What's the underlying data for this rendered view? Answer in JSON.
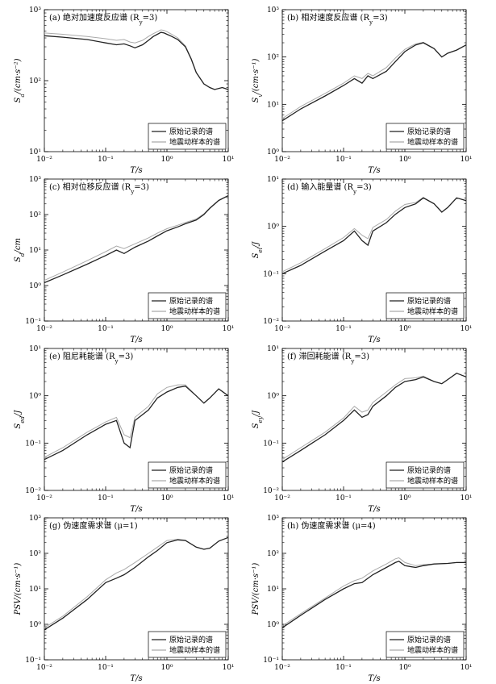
{
  "chart_data": [
    {
      "id": "a",
      "type": "line",
      "title": "(a) 绝对加速度反应谱 (R_y=3)",
      "xlabel": "T/s",
      "ylabel": "S_a/(cm·s⁻²)",
      "xscale": "log",
      "yscale": "log",
      "xlim": [
        0.01,
        10
      ],
      "ylim": [
        10,
        1000
      ],
      "xticks": [
        "10⁻²",
        "10⁻¹",
        "10⁰",
        "10¹"
      ],
      "yticks": [
        "10¹",
        "10²",
        "10³"
      ],
      "legend": {
        "position": "bottom-right",
        "entries": [
          "原始记录的谱",
          "地震动样本的谱"
        ]
      },
      "series": [
        {
          "name": "原始记录的谱",
          "color": "#222222",
          "x": [
            0.01,
            0.02,
            0.05,
            0.1,
            0.15,
            0.2,
            0.25,
            0.3,
            0.4,
            0.5,
            0.6,
            0.7,
            0.8,
            0.9,
            1.0,
            1.2,
            1.5,
            2.0,
            2.5,
            3.0,
            4.0,
            5.0,
            6.0,
            8.0,
            10.0
          ],
          "y": [
            430,
            410,
            380,
            340,
            320,
            330,
            310,
            290,
            320,
            370,
            420,
            450,
            480,
            470,
            450,
            420,
            380,
            300,
            200,
            130,
            90,
            80,
            75,
            80,
            75
          ]
        },
        {
          "name": "地震动样本的谱",
          "color": "#aaaaaa",
          "x": [
            0.01,
            0.02,
            0.05,
            0.1,
            0.15,
            0.2,
            0.25,
            0.3,
            0.4,
            0.5,
            0.6,
            0.7,
            0.8,
            0.9,
            1.0,
            1.2,
            1.5,
            2.0,
            2.5,
            3.0,
            4.0,
            5.0,
            6.0,
            8.0,
            10.0
          ],
          "y": [
            470,
            450,
            420,
            390,
            370,
            380,
            350,
            340,
            370,
            420,
            460,
            490,
            520,
            510,
            490,
            450,
            400,
            310,
            205,
            132,
            90,
            80,
            75,
            80,
            75
          ]
        }
      ]
    },
    {
      "id": "b",
      "type": "line",
      "title": "(b) 相对速度反应谱 (R_y=3)",
      "xlabel": "T/s",
      "ylabel": "S_v/(cm·s⁻¹)",
      "xscale": "log",
      "yscale": "log",
      "xlim": [
        0.01,
        10
      ],
      "ylim": [
        1,
        1000
      ],
      "xticks": [
        "10⁻²",
        "10⁻¹",
        "10⁰",
        "10¹"
      ],
      "yticks": [
        "10⁰",
        "10¹",
        "10²",
        "10³"
      ],
      "legend": {
        "position": "bottom-right",
        "entries": [
          "原始记录的谱",
          "地震动样本的谱"
        ]
      },
      "series": [
        {
          "name": "原始记录的谱",
          "color": "#222222",
          "x": [
            0.01,
            0.02,
            0.05,
            0.1,
            0.15,
            0.2,
            0.25,
            0.3,
            0.5,
            0.7,
            1.0,
            1.5,
            2.0,
            3.0,
            4.0,
            5.0,
            7.0,
            10.0
          ],
          "y": [
            4.5,
            8,
            15,
            25,
            35,
            28,
            40,
            35,
            50,
            80,
            130,
            180,
            200,
            150,
            100,
            120,
            140,
            180
          ]
        },
        {
          "name": "地震动样本的谱",
          "color": "#aaaaaa",
          "x": [
            0.01,
            0.02,
            0.05,
            0.1,
            0.15,
            0.2,
            0.25,
            0.3,
            0.5,
            0.7,
            1.0,
            1.5,
            2.0,
            3.0,
            4.0,
            5.0,
            7.0,
            10.0
          ],
          "y": [
            5,
            9,
            17,
            28,
            40,
            35,
            45,
            40,
            60,
            95,
            145,
            190,
            205,
            150,
            100,
            120,
            140,
            180
          ]
        }
      ]
    },
    {
      "id": "c",
      "type": "line",
      "title": "(c) 相对位移反应谱 (R_y=3)",
      "xlabel": "T/s",
      "ylabel": "S_d/cm",
      "xscale": "log",
      "yscale": "log",
      "xlim": [
        0.01,
        10
      ],
      "ylim": [
        0.1,
        1000
      ],
      "xticks": [
        "10⁻²",
        "10⁻¹",
        "10⁰",
        "10¹"
      ],
      "yticks": [
        "10⁻¹",
        "10⁰",
        "10¹",
        "10²",
        "10³"
      ],
      "legend": {
        "position": "bottom-right",
        "entries": [
          "原始记录的谱",
          "地震动样本的谱"
        ]
      },
      "series": [
        {
          "name": "原始记录的谱",
          "color": "#222222",
          "x": [
            0.01,
            0.02,
            0.05,
            0.1,
            0.15,
            0.2,
            0.3,
            0.5,
            0.7,
            1.0,
            1.5,
            2.0,
            3.0,
            4.0,
            5.0,
            7.0,
            10.0
          ],
          "y": [
            1.2,
            2,
            4,
            7,
            10,
            8,
            12,
            18,
            25,
            35,
            45,
            55,
            70,
            100,
            150,
            250,
            340
          ]
        },
        {
          "name": "地震动样本的谱",
          "color": "#aaaaaa",
          "x": [
            0.01,
            0.02,
            0.05,
            0.1,
            0.15,
            0.2,
            0.3,
            0.5,
            0.7,
            1.0,
            1.5,
            2.0,
            3.0,
            4.0,
            5.0,
            7.0,
            10.0
          ],
          "y": [
            1.4,
            2.4,
            5,
            9,
            13,
            11,
            15,
            22,
            30,
            40,
            50,
            60,
            75,
            105,
            155,
            255,
            345
          ]
        }
      ]
    },
    {
      "id": "d",
      "type": "line",
      "title": "(d) 输入能量谱 (R_y=3)",
      "xlabel": "T/s",
      "ylabel": "S_ei/J",
      "xscale": "log",
      "yscale": "log",
      "xlim": [
        0.01,
        10
      ],
      "ylim": [
        0.01,
        10
      ],
      "xticks": [
        "10⁻²",
        "10⁻¹",
        "10⁰",
        "10¹"
      ],
      "yticks": [
        "10⁻²",
        "10⁻¹",
        "10⁰",
        "10¹"
      ],
      "legend": {
        "position": "bottom-right",
        "entries": [
          "原始记录的谱",
          "地震动样本的谱"
        ]
      },
      "series": [
        {
          "name": "原始记录的谱",
          "color": "#222222",
          "x": [
            0.01,
            0.02,
            0.05,
            0.1,
            0.15,
            0.2,
            0.25,
            0.3,
            0.5,
            0.7,
            1.0,
            1.5,
            2.0,
            3.0,
            4.0,
            5.0,
            7.0,
            10.0
          ],
          "y": [
            0.1,
            0.15,
            0.3,
            0.5,
            0.8,
            0.5,
            0.4,
            0.8,
            1.2,
            1.8,
            2.5,
            3.0,
            4.0,
            3.0,
            2.0,
            2.5,
            4.0,
            3.5
          ]
        },
        {
          "name": "地震动样本的谱",
          "color": "#aaaaaa",
          "x": [
            0.01,
            0.02,
            0.05,
            0.1,
            0.15,
            0.2,
            0.25,
            0.3,
            0.5,
            0.7,
            1.0,
            1.5,
            2.0,
            3.0,
            4.0,
            5.0,
            7.0,
            10.0
          ],
          "y": [
            0.11,
            0.17,
            0.34,
            0.58,
            0.9,
            0.65,
            0.55,
            0.95,
            1.4,
            2.1,
            2.9,
            3.2,
            4.1,
            3.0,
            2.0,
            2.5,
            4.0,
            3.5
          ]
        }
      ]
    },
    {
      "id": "e",
      "type": "line",
      "title": "(e) 阻尼耗能谱 (R_y=3)",
      "xlabel": "T/s",
      "ylabel": "S_ed/J",
      "xscale": "log",
      "yscale": "log",
      "xlim": [
        0.01,
        10
      ],
      "ylim": [
        0.01,
        10
      ],
      "xticks": [
        "10⁻²",
        "10⁻¹",
        "10⁰",
        "10¹"
      ],
      "yticks": [
        "10⁻²",
        "10⁻¹",
        "10⁰",
        "10¹"
      ],
      "legend": {
        "position": "bottom-right",
        "entries": [
          "原始记录的谱",
          "地震动样本的谱"
        ]
      },
      "series": [
        {
          "name": "原始记录的谱",
          "color": "#222222",
          "x": [
            0.01,
            0.02,
            0.05,
            0.1,
            0.15,
            0.2,
            0.25,
            0.3,
            0.5,
            0.7,
            1.0,
            1.5,
            2.0,
            3.0,
            4.0,
            5.0,
            7.0,
            10.0
          ],
          "y": [
            0.045,
            0.07,
            0.15,
            0.25,
            0.3,
            0.1,
            0.08,
            0.3,
            0.5,
            0.9,
            1.2,
            1.5,
            1.6,
            1.0,
            0.7,
            0.9,
            1.4,
            1.0
          ]
        },
        {
          "name": "地震动样本的谱",
          "color": "#aaaaaa",
          "x": [
            0.01,
            0.02,
            0.05,
            0.1,
            0.15,
            0.2,
            0.25,
            0.3,
            0.5,
            0.7,
            1.0,
            1.5,
            2.0,
            3.0,
            4.0,
            5.0,
            7.0,
            10.0
          ],
          "y": [
            0.05,
            0.08,
            0.17,
            0.28,
            0.35,
            0.15,
            0.13,
            0.35,
            0.6,
            1.1,
            1.5,
            1.7,
            1.7,
            1.0,
            0.7,
            0.9,
            1.4,
            1.0
          ]
        }
      ]
    },
    {
      "id": "f",
      "type": "line",
      "title": "(f) 滞回耗能谱 (R_y=3)",
      "xlabel": "T/s",
      "ylabel": "S_ey/J",
      "xscale": "log",
      "yscale": "log",
      "xlim": [
        0.01,
        10
      ],
      "ylim": [
        0.01,
        10
      ],
      "xticks": [
        "10⁻²",
        "10⁻¹",
        "10⁰",
        "10¹"
      ],
      "yticks": [
        "10⁻²",
        "10⁻¹",
        "10⁰",
        "10¹"
      ],
      "legend": {
        "position": "bottom-right",
        "entries": [
          "原始记录的谱",
          "地震动样本的谱"
        ]
      },
      "series": [
        {
          "name": "原始记录的谱",
          "color": "#222222",
          "x": [
            0.01,
            0.02,
            0.05,
            0.1,
            0.15,
            0.2,
            0.25,
            0.3,
            0.5,
            0.7,
            1.0,
            1.5,
            2.0,
            3.0,
            4.0,
            5.0,
            7.0,
            10.0
          ],
          "y": [
            0.04,
            0.07,
            0.15,
            0.3,
            0.5,
            0.35,
            0.4,
            0.6,
            1.0,
            1.5,
            2.0,
            2.2,
            2.5,
            2.0,
            1.8,
            2.2,
            3.0,
            2.5
          ]
        },
        {
          "name": "地震动样本的谱",
          "color": "#aaaaaa",
          "x": [
            0.01,
            0.02,
            0.05,
            0.1,
            0.15,
            0.2,
            0.25,
            0.3,
            0.5,
            0.7,
            1.0,
            1.5,
            2.0,
            3.0,
            4.0,
            5.0,
            7.0,
            10.0
          ],
          "y": [
            0.045,
            0.08,
            0.17,
            0.34,
            0.6,
            0.45,
            0.5,
            0.72,
            1.2,
            1.7,
            2.3,
            2.4,
            2.6,
            2.0,
            1.8,
            2.2,
            3.0,
            2.5
          ]
        }
      ]
    },
    {
      "id": "g",
      "type": "line",
      "title": "(g) 伪速度需求谱 (μ=1)",
      "xlabel": "T/s",
      "ylabel": "PSV/(cm·s⁻¹)",
      "xscale": "log",
      "yscale": "log",
      "xlim": [
        0.01,
        10
      ],
      "ylim": [
        0.1,
        1000
      ],
      "xticks": [
        "10⁻²",
        "10⁻¹",
        "10⁰",
        "10¹"
      ],
      "yticks": [
        "10⁻¹",
        "10⁰",
        "10¹",
        "10²",
        "10³"
      ],
      "legend": {
        "position": "bottom-right",
        "entries": [
          "原始记录的谱",
          "地震动样本的谱"
        ]
      },
      "series": [
        {
          "name": "原始记录的谱",
          "color": "#222222",
          "x": [
            0.01,
            0.02,
            0.05,
            0.1,
            0.15,
            0.2,
            0.3,
            0.5,
            0.7,
            1.0,
            1.5,
            2.0,
            3.0,
            4.0,
            5.0,
            7.0,
            10.0
          ],
          "y": [
            0.7,
            1.5,
            5,
            15,
            20,
            25,
            40,
            80,
            120,
            200,
            240,
            230,
            150,
            130,
            140,
            220,
            280
          ]
        },
        {
          "name": "地震动样本的谱",
          "color": "#aaaaaa",
          "x": [
            0.01,
            0.02,
            0.05,
            0.1,
            0.15,
            0.2,
            0.3,
            0.5,
            0.7,
            1.0,
            1.5,
            2.0,
            3.0,
            4.0,
            5.0,
            7.0,
            10.0
          ],
          "y": [
            0.8,
            1.7,
            6,
            18,
            28,
            35,
            55,
            100,
            150,
            230,
            250,
            235,
            150,
            130,
            140,
            220,
            280
          ]
        }
      ]
    },
    {
      "id": "h",
      "type": "line",
      "title": "(h) 伪速度需求谱 (μ=4)",
      "xlabel": "T/s",
      "ylabel": "PSV/(cm·s⁻¹)",
      "xscale": "log",
      "yscale": "log",
      "xlim": [
        0.01,
        10
      ],
      "ylim": [
        0.1,
        1000
      ],
      "xticks": [
        "10⁻²",
        "10⁻¹",
        "10⁰",
        "10¹"
      ],
      "yticks": [
        "10⁻¹",
        "10⁰",
        "10¹",
        "10²",
        "10³"
      ],
      "legend": {
        "position": "bottom-right",
        "entries": [
          "原始记录的谱",
          "地震动样本的谱"
        ]
      },
      "series": [
        {
          "name": "原始记录的谱",
          "color": "#222222",
          "x": [
            0.01,
            0.02,
            0.05,
            0.1,
            0.15,
            0.2,
            0.3,
            0.5,
            0.7,
            0.8,
            1.0,
            1.5,
            2.0,
            3.0,
            5.0,
            7.0,
            10.0
          ],
          "y": [
            0.8,
            1.8,
            5,
            10,
            14,
            15,
            25,
            40,
            55,
            60,
            45,
            40,
            45,
            50,
            52,
            55,
            55
          ]
        },
        {
          "name": "地震动样本的谱",
          "color": "#aaaaaa",
          "x": [
            0.01,
            0.02,
            0.05,
            0.1,
            0.15,
            0.2,
            0.3,
            0.5,
            0.7,
            0.8,
            1.0,
            1.5,
            2.0,
            3.0,
            5.0,
            7.0,
            10.0
          ],
          "y": [
            0.9,
            2,
            5.5,
            12,
            17,
            20,
            32,
            50,
            70,
            75,
            55,
            45,
            48,
            50,
            52,
            55,
            55
          ]
        }
      ]
    }
  ]
}
